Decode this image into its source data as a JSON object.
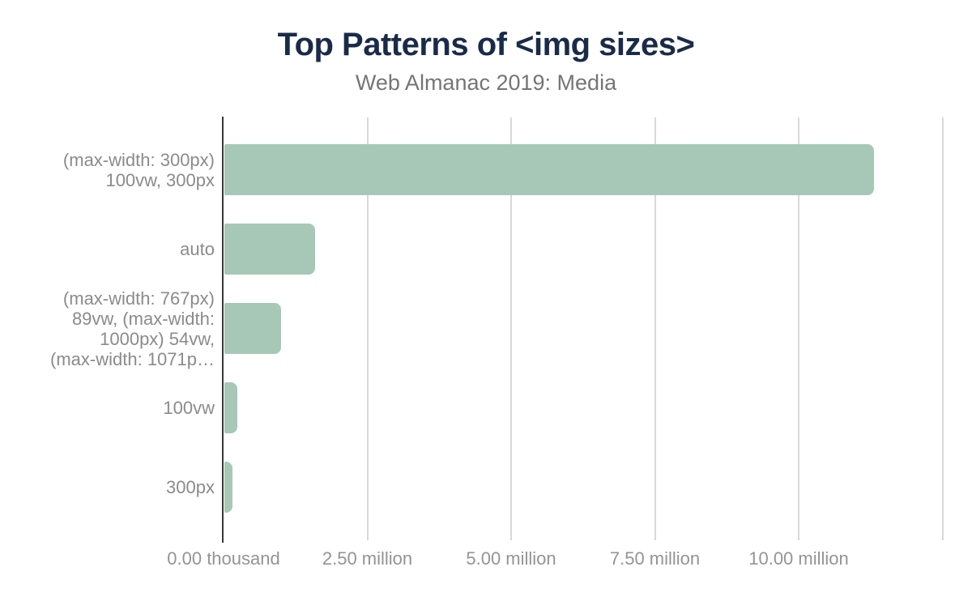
{
  "header": {
    "title": "Top Patterns of <img sizes>",
    "subtitle": "Web Almanac 2019: Media"
  },
  "colors": {
    "bar_fill": "#a7c8b7",
    "title_text": "#1a2b49",
    "subtitle_text": "#757575",
    "category_label_text": "#8b8b8b",
    "tick_label_text": "#949494",
    "gridline": "#d9d9d9",
    "axis_line": "#383838",
    "background": "#ffffff"
  },
  "chart_data": {
    "type": "bar",
    "orientation": "horizontal",
    "title": "Top Patterns of <img sizes>",
    "subtitle": "Web Almanac 2019: Media",
    "categories": [
      "(max-width: 300px) 100vw, 300px",
      "auto",
      "(max-width: 767px) 89vw, (max-width: 1000px) 54vw, (max-width: 1071p…",
      "100vw",
      "300px"
    ],
    "category_label_lines": [
      [
        "(max-width: 300px)",
        "100vw, 300px"
      ],
      [
        "auto"
      ],
      [
        "(max-width: 767px)",
        "89vw, (max-width:",
        "1000px) 54vw,",
        "(max-width: 1071p…"
      ],
      [
        "100vw"
      ],
      [
        "300px"
      ]
    ],
    "values": [
      11300000,
      1580000,
      990000,
      230000,
      140000
    ],
    "values_unit": "occurrences",
    "x_axis": {
      "min": 0,
      "max": 13000000,
      "ticks": [
        {
          "value": 0,
          "label": "0.00 thousand"
        },
        {
          "value": 2500000,
          "label": "2.50 million"
        },
        {
          "value": 5000000,
          "label": "5.00 million"
        },
        {
          "value": 7500000,
          "label": "7.50 million"
        },
        {
          "value": 10000000,
          "label": "10.00 million"
        }
      ],
      "gridline_values": [
        2500000,
        5000000,
        7500000,
        10000000,
        12500000
      ]
    },
    "grid": true,
    "legend": false
  }
}
